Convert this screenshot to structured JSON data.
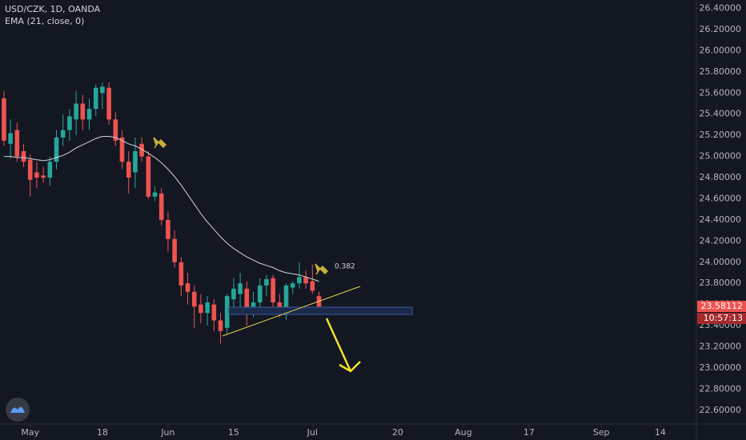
{
  "chart_data": {
    "type": "candlestick",
    "title": "USD/CZK, 1D, OANDA",
    "up_color": "#26a69a",
    "down_color": "#ef5350",
    "open": [
      25.55,
      25.12,
      25.25,
      25.05,
      24.97,
      24.85,
      24.82,
      24.8,
      24.95,
      25.18,
      25.25,
      25.35,
      25.5,
      25.35,
      25.45,
      25.6,
      25.65,
      25.35,
      25.18,
      24.95,
      24.85,
      25.12,
      25.0,
      24.62,
      24.65,
      24.4,
      24.22,
      24.0,
      23.8,
      23.72,
      23.6,
      23.52,
      23.6,
      23.45,
      23.38,
      23.65,
      23.7,
      23.75,
      23.58,
      23.62,
      23.78,
      23.85,
      23.62,
      23.5,
      23.76,
      23.8,
      23.86,
      23.82,
      23.68
    ],
    "high": [
      25.62,
      25.35,
      25.32,
      25.12,
      25.02,
      24.95,
      24.9,
      25.0,
      25.25,
      25.4,
      25.45,
      25.62,
      25.58,
      25.55,
      25.68,
      25.7,
      25.7,
      25.42,
      25.25,
      25.05,
      25.18,
      25.18,
      25.05,
      24.72,
      24.7,
      24.48,
      24.3,
      24.05,
      23.9,
      23.78,
      23.7,
      23.68,
      23.65,
      23.52,
      23.7,
      23.85,
      23.9,
      23.82,
      23.72,
      23.85,
      23.88,
      23.88,
      23.7,
      23.8,
      23.82,
      24.0,
      23.92,
      23.98,
      23.72
    ],
    "low": [
      25.1,
      24.98,
      24.95,
      24.9,
      24.62,
      24.7,
      24.75,
      24.72,
      24.88,
      25.1,
      25.15,
      25.2,
      25.25,
      25.25,
      25.38,
      25.45,
      25.3,
      25.1,
      24.88,
      24.65,
      24.7,
      24.95,
      24.6,
      24.58,
      24.35,
      24.1,
      23.95,
      23.68,
      23.6,
      23.38,
      23.42,
      23.4,
      23.35,
      23.23,
      23.32,
      23.5,
      23.55,
      23.4,
      23.48,
      23.55,
      23.68,
      23.55,
      23.48,
      23.45,
      23.7,
      23.75,
      23.75,
      23.7,
      23.56
    ],
    "close": [
      25.15,
      25.22,
      25.0,
      24.95,
      24.78,
      24.8,
      24.8,
      24.95,
      25.18,
      25.25,
      25.38,
      25.5,
      25.35,
      25.45,
      25.65,
      25.66,
      25.35,
      25.15,
      24.95,
      24.8,
      25.05,
      25.0,
      24.62,
      24.66,
      24.4,
      24.22,
      24.0,
      23.78,
      23.72,
      23.58,
      23.52,
      23.62,
      23.45,
      23.35,
      23.68,
      23.75,
      23.8,
      23.55,
      23.62,
      23.78,
      23.84,
      23.62,
      23.52,
      23.78,
      23.8,
      23.86,
      23.8,
      23.73,
      23.58112
    ],
    "ema": {
      "name": "EMA (21, close, 0)",
      "color": "#d1d4dc",
      "values": [
        25.0,
        25.0,
        24.99,
        24.99,
        24.98,
        24.97,
        24.96,
        24.97,
        24.99,
        25.01,
        25.04,
        25.08,
        25.11,
        25.14,
        25.17,
        25.19,
        25.19,
        25.18,
        25.15,
        25.12,
        25.1,
        25.07,
        25.03,
        24.99,
        24.94,
        24.88,
        24.81,
        24.73,
        24.64,
        24.55,
        24.46,
        24.38,
        24.31,
        24.24,
        24.18,
        24.13,
        24.09,
        24.05,
        24.02,
        23.99,
        23.97,
        23.95,
        23.92,
        23.9,
        23.89,
        23.88,
        23.86,
        23.84,
        23.82
      ]
    },
    "countdown": "10:57:13",
    "fib_label": "0.382",
    "xlim": [
      -0.6,
      105.5
    ],
    "xticks": [
      {
        "value": 4,
        "label": "May"
      },
      {
        "value": 15,
        "label": "18"
      },
      {
        "value": 25,
        "label": "Jun"
      },
      {
        "value": 35,
        "label": "15"
      },
      {
        "value": 47,
        "label": "Jul"
      },
      {
        "value": 60,
        "label": "20"
      },
      {
        "value": 70,
        "label": "Aug"
      },
      {
        "value": 80,
        "label": "17"
      },
      {
        "value": 91,
        "label": "Sep"
      },
      {
        "value": 100,
        "label": "14"
      }
    ],
    "ylim": [
      22.47,
      26.48
    ],
    "yticks": [
      {
        "value": 22.6,
        "label": "22.60000"
      },
      {
        "value": 22.8,
        "label": "22.80000"
      },
      {
        "value": 23.0,
        "label": "23.00000"
      },
      {
        "value": 23.2,
        "label": "23.20000"
      },
      {
        "value": 23.4,
        "label": "23.40000"
      },
      {
        "value": 23.6,
        "label": "23.60000"
      },
      {
        "value": 23.8,
        "label": "23.80000"
      },
      {
        "value": 24.0,
        "label": "24.00000"
      },
      {
        "value": 24.2,
        "label": "24.20000"
      },
      {
        "value": 24.4,
        "label": "24.40000"
      },
      {
        "value": 24.6,
        "label": "24.60000"
      },
      {
        "value": 24.8,
        "label": "24.80000"
      },
      {
        "value": 25.0,
        "label": "25.00000"
      },
      {
        "value": 25.2,
        "label": "25.20000"
      },
      {
        "value": 25.4,
        "label": "25.40000"
      },
      {
        "value": 25.6,
        "label": "25.60000"
      },
      {
        "value": 25.8,
        "label": "25.80000"
      },
      {
        "value": 26.0,
        "label": "26.00000"
      },
      {
        "value": 26.2,
        "label": "26.20000"
      },
      {
        "value": 26.4,
        "label": "26.40000"
      }
    ]
  }
}
